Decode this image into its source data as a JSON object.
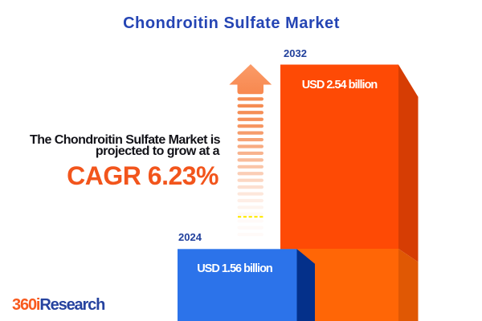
{
  "title": "Chondroitin Sulfate Market",
  "tagline": {
    "line1": "The Chondroitin Sulfate Market is",
    "line2": "projected to grow at a",
    "cagr": "CAGR 6.23%"
  },
  "chart_data": {
    "type": "bar",
    "title": "Chondroitin Sulfate Market",
    "categories": [
      "2024",
      "2032"
    ],
    "values": [
      1.56,
      2.54
    ],
    "unit": "USD billion",
    "value_labels": [
      "USD 1.56 billion",
      "USD 2.54 billion"
    ],
    "cagr_percent": 6.23,
    "legend_position": "none",
    "grid": false
  },
  "bars": [
    {
      "year": "2024",
      "value_label": "USD 1.56 billion"
    },
    {
      "year": "2032",
      "value_label": "USD 2.54 billion"
    }
  ],
  "logo": {
    "prefix": "360i",
    "suffix": "Research"
  },
  "arrow": {
    "stripe_count": 21
  },
  "colors": {
    "title_blue": "#2545B4",
    "year_navy": "#21409C",
    "tagline_dark": "#131319",
    "cagr_orange": "#F2551C",
    "bar2032_front_top": "#FE4A05",
    "bar2032_side_top": "#D63D04",
    "bar2032_front_bottom": "#FF6606",
    "bar2032_side_bottom": "#E05804",
    "bar2024_front": "#2C73EA",
    "bar2024_side": "#04308A",
    "arrow_head_top": "#FA9B68",
    "arrow_head_bottom": "#F8884F",
    "stripe_orange": "#F58B52",
    "dash_yellow": "#FFEA00",
    "logo_orange": "#F85A1E",
    "logo_blue": "#26439F",
    "value_text": "#FFFFFF",
    "background": "#FFFFFF"
  }
}
